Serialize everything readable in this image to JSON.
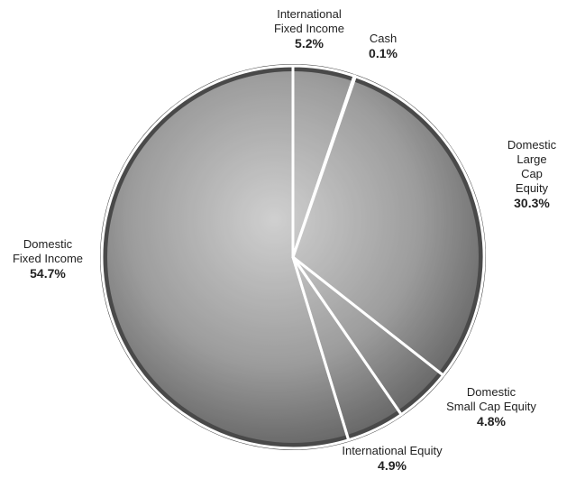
{
  "chart_data": {
    "type": "pie",
    "categories": [
      "International\nFixed Income",
      "Cash",
      "Domestic\nLarge Cap Equity",
      "Domestic\nSmall Cap Equity",
      "International Equity",
      "Domestic\nFixed Income"
    ],
    "values": [
      5.2,
      0.1,
      30.3,
      4.8,
      4.9,
      54.7
    ],
    "value_labels": [
      "5.2%",
      "0.1%",
      "30.3%",
      "4.8%",
      "4.9%",
      "54.7%"
    ],
    "color": "#a3a3a3",
    "edge_color": "#ffffff"
  }
}
